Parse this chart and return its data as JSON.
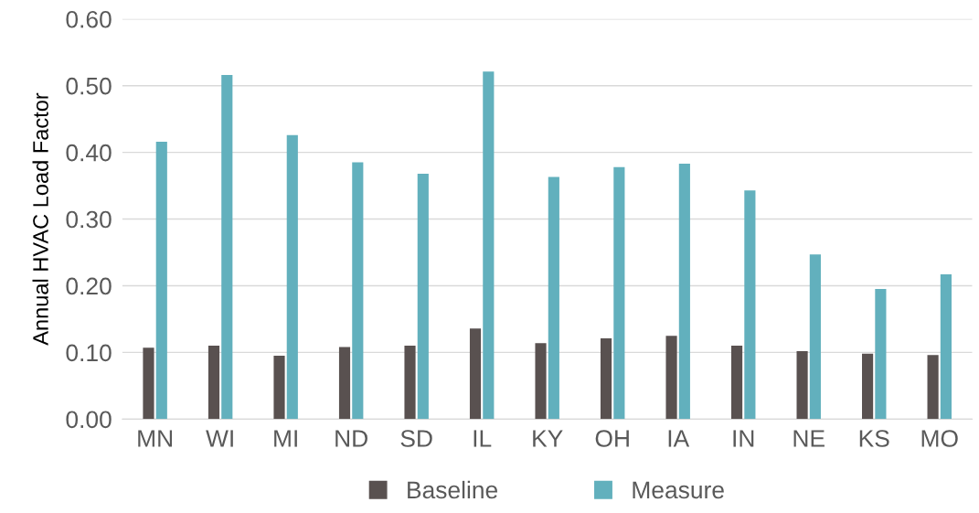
{
  "chart_data": {
    "type": "bar",
    "ylabel": "Annual HVAC Load Factor",
    "categories": [
      "MN",
      "WI",
      "MI",
      "ND",
      "SD",
      "IL",
      "KY",
      "OH",
      "IA",
      "IN",
      "NE",
      "KS",
      "MO"
    ],
    "series": [
      {
        "name": "Baseline",
        "color": "#595150",
        "values": [
          0.107,
          0.11,
          0.095,
          0.108,
          0.11,
          0.136,
          0.114,
          0.121,
          0.125,
          0.11,
          0.102,
          0.098,
          0.096
        ]
      },
      {
        "name": "Measure",
        "color": "#62b0bd",
        "values": [
          0.416,
          0.516,
          0.426,
          0.385,
          0.368,
          0.521,
          0.363,
          0.378,
          0.383,
          0.343,
          0.247,
          0.195,
          0.217
        ]
      }
    ],
    "ylim": [
      0,
      0.6
    ],
    "yticks": [
      {
        "value": 0,
        "label": "0.00"
      },
      {
        "value": 0.1,
        "label": "0.10"
      },
      {
        "value": 0.2,
        "label": "0.20"
      },
      {
        "value": 0.3,
        "label": "0.30"
      },
      {
        "value": 0.4,
        "label": "0.40"
      },
      {
        "value": 0.5,
        "label": "0.50"
      },
      {
        "value": 0.6,
        "label": "0.60"
      }
    ],
    "grid": "y",
    "legend": "bottom"
  }
}
